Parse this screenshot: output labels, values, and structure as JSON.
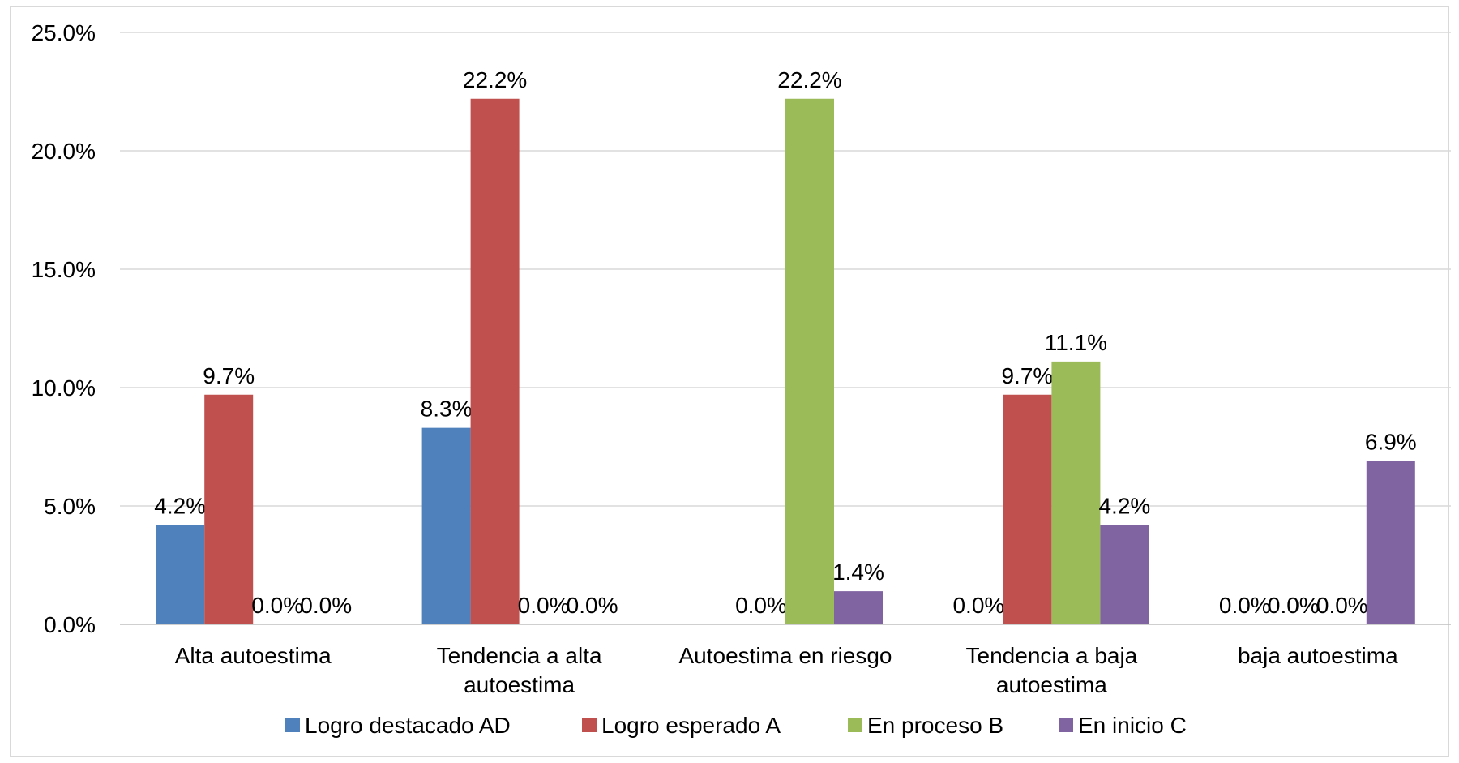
{
  "chart_data": {
    "type": "bar",
    "categories": [
      [
        "Alta autoestima"
      ],
      [
        "Tendencia a alta",
        "autoestima"
      ],
      [
        "Autoestima en riesgo"
      ],
      [
        "Tendencia a baja",
        "autoestima"
      ],
      [
        "baja autoestima"
      ]
    ],
    "series": [
      {
        "name": "Logro destacado AD",
        "color": "#4f81bd",
        "values": [
          4.2,
          8.3,
          0.0,
          0.0,
          0.0
        ]
      },
      {
        "name": "Logro esperado A",
        "color": "#c0504d",
        "values": [
          9.7,
          22.2,
          0.0,
          9.7,
          0.0
        ]
      },
      {
        "name": "En proceso B",
        "color": "#9bbb59",
        "values": [
          0.0,
          0.0,
          22.2,
          11.1,
          0.0
        ]
      },
      {
        "name": "En inicio C",
        "color": "#8064a2",
        "values": [
          0.0,
          0.0,
          1.4,
          4.2,
          6.9
        ]
      }
    ],
    "data_labels": [
      [
        "4.2%",
        "8.3%",
        "0.0%",
        "0.0%",
        "0.0%"
      ],
      [
        "9.7%",
        "22.2%",
        "0.0%",
        "9.7%",
        "0.0%"
      ],
      [
        "0.0%",
        "0.0%",
        "22.2%",
        "11.1%",
        "0.0%"
      ],
      [
        "0.0%",
        "0.0%",
        "1.4%",
        "4.2%",
        "6.9%"
      ]
    ],
    "hidden_labels": [
      [
        false,
        false,
        true,
        false,
        false
      ],
      [
        false,
        false,
        false,
        false,
        false
      ],
      [
        false,
        false,
        false,
        false,
        false
      ],
      [
        false,
        false,
        false,
        false,
        false
      ]
    ],
    "yticks": [
      "0.0%",
      "5.0%",
      "10.0%",
      "15.0%",
      "20.0%",
      "25.0%"
    ],
    "ylim": [
      0,
      25
    ],
    "grid": true,
    "legend_position": "bottom"
  }
}
